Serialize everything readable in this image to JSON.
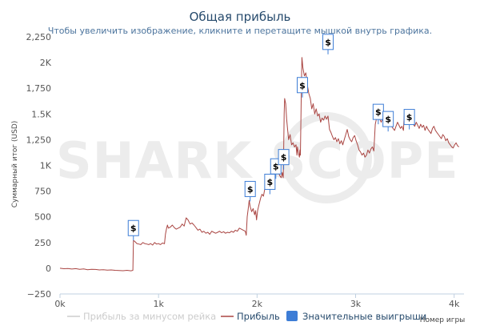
{
  "chart_data": {
    "type": "line",
    "title": "Общая прибыль",
    "subtitle": "Чтобы увеличить изображение, кликните и перетащите мышкой внутрь графика.",
    "xlabel": "Номер игры",
    "ylabel": "Суммарный итог (USD)",
    "xlim": [
      0,
      4100
    ],
    "ylim": [
      -250,
      2250
    ],
    "x_ticks": [
      0,
      1000,
      2000,
      3000,
      4000
    ],
    "x_tick_labels": [
      "0k",
      "1k",
      "2k",
      "3k",
      "4k"
    ],
    "y_ticks": [
      -250,
      0,
      250,
      500,
      750,
      1000,
      1250,
      1500,
      1750,
      2000,
      2250
    ],
    "y_tick_labels": [
      "−250",
      "0",
      "250",
      "500",
      "750",
      "1K",
      "1,250",
      "1.5K",
      "1,750",
      "2K",
      "2,250"
    ],
    "grid": false,
    "legend_position": "bottom",
    "watermark": "SHARK SCOPE",
    "series": [
      {
        "name": "Прибыль за минусом рейка",
        "color": "#cccccc",
        "visible": false,
        "points": []
      },
      {
        "name": "Прибыль",
        "color": "#aa4643",
        "visible": true,
        "points": [
          [
            0,
            0
          ],
          [
            40,
            -5
          ],
          [
            80,
            -2
          ],
          [
            120,
            -8
          ],
          [
            160,
            -4
          ],
          [
            200,
            -10
          ],
          [
            240,
            -6
          ],
          [
            280,
            -14
          ],
          [
            320,
            -10
          ],
          [
            360,
            -12
          ],
          [
            400,
            -16
          ],
          [
            440,
            -14
          ],
          [
            480,
            -18
          ],
          [
            520,
            -16
          ],
          [
            560,
            -20
          ],
          [
            600,
            -22
          ],
          [
            640,
            -24
          ],
          [
            680,
            -20
          ],
          [
            720,
            -25
          ],
          [
            740,
            -20
          ],
          [
            745,
            270
          ],
          [
            760,
            260
          ],
          [
            780,
            240
          ],
          [
            800,
            235
          ],
          [
            820,
            230
          ],
          [
            840,
            250
          ],
          [
            860,
            240
          ],
          [
            880,
            235
          ],
          [
            900,
            230
          ],
          [
            920,
            240
          ],
          [
            940,
            225
          ],
          [
            960,
            250
          ],
          [
            980,
            235
          ],
          [
            1000,
            240
          ],
          [
            1020,
            230
          ],
          [
            1040,
            245
          ],
          [
            1060,
            238
          ],
          [
            1070,
            330
          ],
          [
            1080,
            380
          ],
          [
            1090,
            420
          ],
          [
            1100,
            390
          ],
          [
            1120,
            400
          ],
          [
            1140,
            420
          ],
          [
            1160,
            395
          ],
          [
            1180,
            380
          ],
          [
            1200,
            390
          ],
          [
            1220,
            400
          ],
          [
            1240,
            430
          ],
          [
            1260,
            410
          ],
          [
            1280,
            490
          ],
          [
            1300,
            470
          ],
          [
            1320,
            430
          ],
          [
            1340,
            440
          ],
          [
            1360,
            420
          ],
          [
            1380,
            395
          ],
          [
            1400,
            370
          ],
          [
            1420,
            380
          ],
          [
            1440,
            350
          ],
          [
            1460,
            360
          ],
          [
            1480,
            340
          ],
          [
            1500,
            350
          ],
          [
            1520,
            330
          ],
          [
            1540,
            360
          ],
          [
            1560,
            350
          ],
          [
            1580,
            340
          ],
          [
            1600,
            350
          ],
          [
            1620,
            360
          ],
          [
            1640,
            345
          ],
          [
            1660,
            355
          ],
          [
            1680,
            340
          ],
          [
            1700,
            350
          ],
          [
            1720,
            345
          ],
          [
            1740,
            360
          ],
          [
            1760,
            350
          ],
          [
            1780,
            370
          ],
          [
            1800,
            360
          ],
          [
            1820,
            390
          ],
          [
            1840,
            380
          ],
          [
            1860,
            370
          ],
          [
            1880,
            360
          ],
          [
            1890,
            320
          ],
          [
            1900,
            500
          ],
          [
            1910,
            580
          ],
          [
            1920,
            660
          ],
          [
            1930,
            600
          ],
          [
            1945,
            550
          ],
          [
            1960,
            580
          ],
          [
            1975,
            520
          ],
          [
            1985,
            560
          ],
          [
            1995,
            470
          ],
          [
            2005,
            560
          ],
          [
            2020,
            620
          ],
          [
            2035,
            680
          ],
          [
            2050,
            720
          ],
          [
            2065,
            700
          ],
          [
            2080,
            780
          ],
          [
            2095,
            820
          ],
          [
            2110,
            800
          ],
          [
            2125,
            860
          ],
          [
            2140,
            900
          ],
          [
            2155,
            950
          ],
          [
            2170,
            930
          ],
          [
            2185,
            960
          ],
          [
            2200,
            920
          ],
          [
            2215,
            940
          ],
          [
            2230,
            900
          ],
          [
            2245,
            880
          ],
          [
            2255,
            930
          ],
          [
            2265,
            880
          ],
          [
            2270,
            1150
          ],
          [
            2275,
            1500
          ],
          [
            2280,
            1650
          ],
          [
            2290,
            1600
          ],
          [
            2300,
            1450
          ],
          [
            2310,
            1350
          ],
          [
            2320,
            1250
          ],
          [
            2335,
            1300
          ],
          [
            2350,
            1200
          ],
          [
            2365,
            1220
          ],
          [
            2380,
            1180
          ],
          [
            2395,
            1200
          ],
          [
            2405,
            1100
          ],
          [
            2410,
            1180
          ],
          [
            2420,
            1120
          ],
          [
            2430,
            1080
          ],
          [
            2435,
            1150
          ],
          [
            2440,
            1100
          ],
          [
            2450,
            1800
          ],
          [
            2455,
            2050
          ],
          [
            2465,
            1950
          ],
          [
            2480,
            1870
          ],
          [
            2495,
            1900
          ],
          [
            2510,
            1780
          ],
          [
            2525,
            1700
          ],
          [
            2540,
            1650
          ],
          [
            2555,
            1550
          ],
          [
            2570,
            1600
          ],
          [
            2585,
            1500
          ],
          [
            2600,
            1550
          ],
          [
            2615,
            1480
          ],
          [
            2630,
            1500
          ],
          [
            2645,
            1420
          ],
          [
            2660,
            1460
          ],
          [
            2675,
            1440
          ],
          [
            2690,
            1480
          ],
          [
            2705,
            1450
          ],
          [
            2720,
            1480
          ],
          [
            2735,
            1350
          ],
          [
            2750,
            1320
          ],
          [
            2765,
            1280
          ],
          [
            2780,
            1250
          ],
          [
            2795,
            1270
          ],
          [
            2810,
            1230
          ],
          [
            2825,
            1260
          ],
          [
            2840,
            1210
          ],
          [
            2855,
            1240
          ],
          [
            2870,
            1200
          ],
          [
            2885,
            1250
          ],
          [
            2900,
            1300
          ],
          [
            2915,
            1350
          ],
          [
            2930,
            1280
          ],
          [
            2945,
            1250
          ],
          [
            2960,
            1230
          ],
          [
            2975,
            1270
          ],
          [
            2990,
            1290
          ],
          [
            3005,
            1240
          ],
          [
            3020,
            1200
          ],
          [
            3035,
            1150
          ],
          [
            3050,
            1130
          ],
          [
            3065,
            1100
          ],
          [
            3080,
            1120
          ],
          [
            3095,
            1080
          ],
          [
            3110,
            1100
          ],
          [
            3125,
            1150
          ],
          [
            3140,
            1120
          ],
          [
            3155,
            1160
          ],
          [
            3170,
            1180
          ],
          [
            3185,
            1140
          ],
          [
            3200,
            1400
          ],
          [
            3215,
            1470
          ],
          [
            3230,
            1500
          ],
          [
            3245,
            1450
          ],
          [
            3260,
            1420
          ],
          [
            3275,
            1460
          ],
          [
            3290,
            1440
          ],
          [
            3305,
            1480
          ],
          [
            3320,
            1450
          ],
          [
            3335,
            1420
          ],
          [
            3350,
            1400
          ],
          [
            3365,
            1380
          ],
          [
            3380,
            1360
          ],
          [
            3395,
            1340
          ],
          [
            3410,
            1380
          ],
          [
            3425,
            1420
          ],
          [
            3440,
            1390
          ],
          [
            3455,
            1360
          ],
          [
            3470,
            1380
          ],
          [
            3485,
            1340
          ],
          [
            3495,
            1520
          ],
          [
            3510,
            1480
          ],
          [
            3525,
            1440
          ],
          [
            3540,
            1460
          ],
          [
            3555,
            1420
          ],
          [
            3570,
            1450
          ],
          [
            3585,
            1400
          ],
          [
            3600,
            1380
          ],
          [
            3615,
            1420
          ],
          [
            3630,
            1390
          ],
          [
            3645,
            1360
          ],
          [
            3660,
            1400
          ],
          [
            3675,
            1370
          ],
          [
            3690,
            1390
          ],
          [
            3705,
            1340
          ],
          [
            3720,
            1380
          ],
          [
            3735,
            1350
          ],
          [
            3750,
            1330
          ],
          [
            3765,
            1310
          ],
          [
            3780,
            1360
          ],
          [
            3795,
            1380
          ],
          [
            3810,
            1340
          ],
          [
            3825,
            1320
          ],
          [
            3840,
            1300
          ],
          [
            3855,
            1280
          ],
          [
            3870,
            1260
          ],
          [
            3885,
            1300
          ],
          [
            3900,
            1280
          ],
          [
            3915,
            1240
          ],
          [
            3930,
            1260
          ],
          [
            3945,
            1220
          ],
          [
            3960,
            1200
          ],
          [
            3975,
            1180
          ],
          [
            3990,
            1170
          ],
          [
            4005,
            1200
          ],
          [
            4020,
            1220
          ],
          [
            4035,
            1190
          ],
          [
            4050,
            1180
          ]
        ]
      },
      {
        "name": "Значительные выигрыши",
        "color": "#3d7dd6",
        "visible": true,
        "flag_label": "$",
        "points": [
          [
            745,
            270
          ],
          [
            1930,
            650
          ],
          [
            2130,
            720
          ],
          [
            2190,
            870
          ],
          [
            2270,
            960
          ],
          [
            2460,
            1660
          ],
          [
            2720,
            2080
          ],
          [
            3230,
            1400
          ],
          [
            3330,
            1330
          ],
          [
            3545,
            1350
          ]
        ]
      }
    ]
  }
}
